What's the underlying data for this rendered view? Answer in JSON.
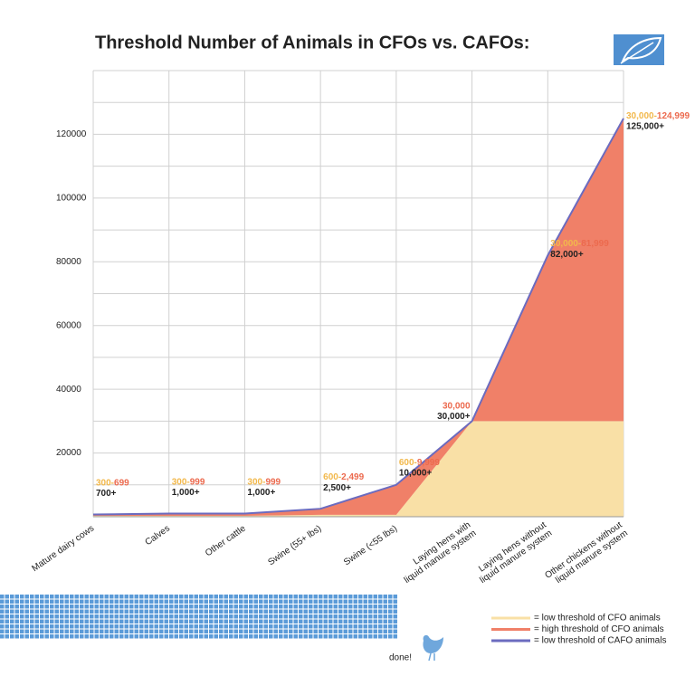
{
  "chart_data": {
    "type": "area",
    "title": "Threshold Number of Animals in CFOs vs. CAFOs:",
    "categories": [
      "Mature dairy cows",
      "Calves",
      "Other cattle",
      "Swine (55+ lbs)",
      "Swine (<55 lbs)",
      "Laying hens with\nliquid manure system",
      "Laying hens without\nliquid manure system",
      "Other chickens without\nliquid manure system"
    ],
    "series": [
      {
        "name": "= low threshold of CFO animals",
        "color": "#f9e0a6",
        "label_color": "#f2b84b",
        "values": [
          300,
          300,
          300,
          600,
          600,
          30000,
          30000,
          30000
        ],
        "value_labels": [
          "300-",
          "300-",
          "300-",
          "600-",
          "600-",
          null,
          "30,000-",
          "30,000-"
        ]
      },
      {
        "name": "= high threshold of CFO animals",
        "color": "#f08068",
        "label_color": "#ec6a4e",
        "values": [
          699,
          999,
          999,
          2499,
          9999,
          30000,
          81999,
          124999
        ],
        "value_labels": [
          "699",
          "999",
          "999",
          "2,499",
          "9,999",
          "30,000",
          "81,999",
          "124,999"
        ]
      },
      {
        "name": "= low threshold of CAFO animals",
        "color": "#6b6bbf",
        "label_color": "#5858b0",
        "values": [
          700,
          1000,
          1000,
          2500,
          10000,
          30000,
          82000,
          125000
        ],
        "value_labels": [
          "700+",
          "1,000+",
          "1,000+",
          "2,500+",
          "10,000+",
          "30,000+",
          "82,000+",
          "125,000+"
        ]
      }
    ],
    "ylim": [
      0,
      140000
    ],
    "yticks": [
      20000,
      40000,
      60000,
      80000,
      100000,
      120000
    ],
    "minor_yticks": [
      10000,
      30000,
      50000,
      70000,
      90000,
      110000,
      130000
    ],
    "grid": true,
    "legend": "bottom-right",
    "annotation": "done!"
  }
}
